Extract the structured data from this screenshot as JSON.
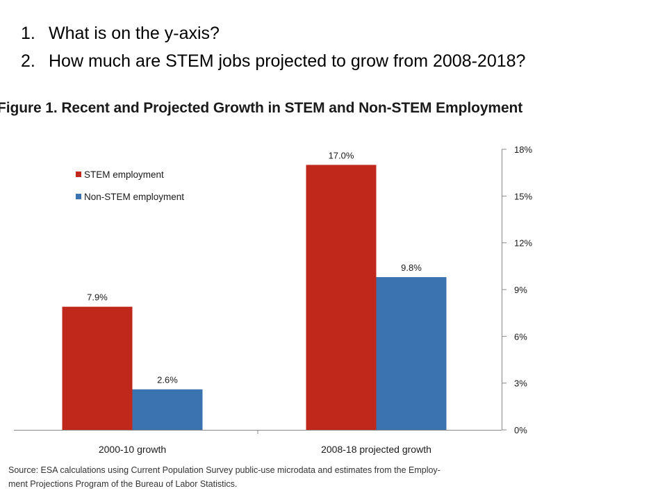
{
  "questions": [
    {
      "number": "1.",
      "text": "What is on the  y-axis?"
    },
    {
      "number": "2.",
      "text": "How much are STEM jobs projected to grow from 2008-2018?"
    }
  ],
  "figure_title": "Figure 1. Recent and Projected Growth in STEM and Non-STEM Employment",
  "source": {
    "line1": "Source:  ESA calculations using Current Population Survey public-use microdata and  estimates from the Employ-",
    "line2": "ment Projections Program of the Bureau of Labor Statistics."
  },
  "colors": {
    "stem": "#c0281c",
    "non_stem": "#3a73b0",
    "axis": "#888888"
  },
  "chart_data": {
    "type": "bar",
    "title": "Figure 1. Recent and Projected Growth in STEM and Non-STEM Employment",
    "categories": [
      "2000-10 growth",
      "2008-18 projected growth"
    ],
    "series": [
      {
        "name": "STEM employment",
        "values": [
          7.9,
          17.0
        ],
        "labels": [
          "7.9%",
          "17.0%"
        ],
        "color": "#c0281c"
      },
      {
        "name": "Non-STEM employment",
        "values": [
          2.6,
          9.8
        ],
        "labels": [
          "2.6%",
          "9.8%"
        ],
        "color": "#3a73b0"
      }
    ],
    "ylim": [
      0,
      18
    ],
    "yticks": [
      0,
      3,
      6,
      9,
      12,
      15,
      18
    ],
    "ytick_labels": [
      "0%",
      "3%",
      "6%",
      "9%",
      "12%",
      "15%",
      "18%"
    ],
    "y_axis_position": "right",
    "legend": "top-left",
    "grid": false
  }
}
